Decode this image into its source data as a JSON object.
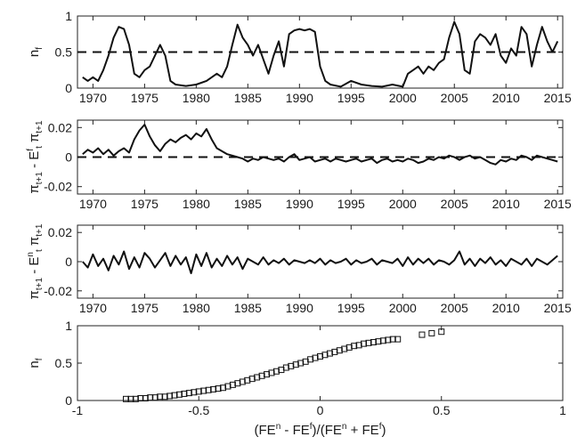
{
  "chart_data": [
    {
      "type": "line",
      "ylabel": "n",
      "ylabel_sub": "f",
      "xlim": [
        1968.5,
        2015.5
      ],
      "ylim": [
        0,
        1
      ],
      "xticks": [
        "1970",
        "1975",
        "1980",
        "1985",
        "1990",
        "1995",
        "2000",
        "2005",
        "2010",
        "2015"
      ],
      "yticks": [
        "0",
        "0.5",
        "1"
      ],
      "reference_line": 0.5,
      "grid": false,
      "series": [
        {
          "x": [
            1969,
            1969.5,
            1970,
            1970.5,
            1971,
            1971.5,
            1972,
            1972.5,
            1973,
            1973.5,
            1974,
            1974.5,
            1975,
            1975.5,
            1976,
            1976.5,
            1977,
            1977.5,
            1978,
            1979,
            1980,
            1981,
            1982,
            1982.5,
            1983,
            1983.5,
            1984,
            1984.5,
            1985,
            1985.5,
            1986,
            1986.5,
            1987,
            1987.5,
            1988,
            1988.5,
            1989,
            1989.5,
            1990,
            1990.5,
            1991,
            1991.5,
            1992,
            1992.5,
            1993,
            1994,
            1995,
            1996,
            1997,
            1998,
            1999,
            2000,
            2000.5,
            2001,
            2001.5,
            2002,
            2002.5,
            2003,
            2003.5,
            2004,
            2004.5,
            2005,
            2005.5,
            2006,
            2006.5,
            2007,
            2007.5,
            2008,
            2008.5,
            2009,
            2009.5,
            2010,
            2010.5,
            2011,
            2011.5,
            2012,
            2012.5,
            2013,
            2013.5,
            2014,
            2014.5,
            2015
          ],
          "y": [
            0.15,
            0.1,
            0.15,
            0.1,
            0.25,
            0.45,
            0.7,
            0.85,
            0.82,
            0.6,
            0.2,
            0.15,
            0.25,
            0.3,
            0.45,
            0.6,
            0.45,
            0.1,
            0.05,
            0.03,
            0.05,
            0.1,
            0.2,
            0.15,
            0.3,
            0.6,
            0.88,
            0.7,
            0.6,
            0.45,
            0.6,
            0.4,
            0.2,
            0.45,
            0.65,
            0.3,
            0.75,
            0.8,
            0.82,
            0.8,
            0.82,
            0.78,
            0.3,
            0.1,
            0.05,
            0.02,
            0.1,
            0.05,
            0.03,
            0.02,
            0.05,
            0.02,
            0.2,
            0.25,
            0.3,
            0.2,
            0.3,
            0.25,
            0.35,
            0.4,
            0.7,
            0.92,
            0.75,
            0.25,
            0.2,
            0.65,
            0.75,
            0.7,
            0.6,
            0.75,
            0.45,
            0.35,
            0.55,
            0.45,
            0.85,
            0.75,
            0.3,
            0.6,
            0.85,
            0.65,
            0.5,
            0.65
          ]
        }
      ]
    },
    {
      "type": "line",
      "ylabel": "π",
      "ylabel_sub": "t+1",
      "ylabel_mid": " - E",
      "ylabel_mid_sub": "t",
      "ylabel_mid_sup": "f",
      "ylabel_end": " π",
      "ylabel_end_sub": "t+1",
      "xlim": [
        1968.5,
        2015.5
      ],
      "ylim": [
        -0.025,
        0.025
      ],
      "xticks": [
        "1970",
        "1975",
        "1980",
        "1985",
        "1990",
        "1995",
        "2000",
        "2005",
        "2010",
        "2015"
      ],
      "yticks": [
        "-0.02",
        "0",
        "0.02"
      ],
      "reference_line": 0,
      "grid": false,
      "series": [
        {
          "x": [
            1969,
            1969.5,
            1970,
            1970.5,
            1971,
            1971.5,
            1972,
            1972.5,
            1973,
            1973.5,
            1974,
            1974.5,
            1975,
            1975.5,
            1976,
            1976.5,
            1977,
            1977.5,
            1978,
            1978.5,
            1979,
            1979.5,
            1980,
            1980.5,
            1981,
            1981.5,
            1982,
            1982.5,
            1983,
            1983.5,
            1984,
            1984.5,
            1985,
            1985.5,
            1986,
            1986.5,
            1987,
            1987.5,
            1988,
            1988.5,
            1989,
            1989.5,
            1990,
            1990.5,
            1991,
            1991.5,
            1992,
            1992.5,
            1993,
            1993.5,
            1994,
            1994.5,
            1995,
            1995.5,
            1996,
            1996.5,
            1997,
            1997.5,
            1998,
            1998.5,
            1999,
            1999.5,
            2000,
            2000.5,
            2001,
            2001.5,
            2002,
            2002.5,
            2003,
            2003.5,
            2004,
            2004.5,
            2005,
            2005.5,
            2006,
            2006.5,
            2007,
            2007.5,
            2008,
            2008.5,
            2009,
            2009.5,
            2010,
            2010.5,
            2011,
            2011.5,
            2012,
            2012.5,
            2013,
            2013.5,
            2014,
            2014.5,
            2015
          ],
          "y": [
            0.002,
            0.005,
            0.003,
            0.006,
            0.002,
            0.005,
            0.001,
            0.004,
            0.006,
            0.003,
            0.012,
            0.018,
            0.022,
            0.014,
            0.008,
            0.004,
            0.009,
            0.012,
            0.01,
            0.013,
            0.015,
            0.012,
            0.016,
            0.014,
            0.019,
            0.012,
            0.006,
            0.004,
            0.002,
            0.001,
            0.0,
            -0.001,
            -0.003,
            -0.001,
            -0.002,
            0.0,
            -0.001,
            -0.002,
            -0.001,
            -0.003,
            0.0,
            0.002,
            -0.002,
            -0.001,
            0.0,
            -0.003,
            -0.002,
            -0.001,
            -0.003,
            -0.001,
            -0.002,
            -0.003,
            -0.002,
            -0.001,
            -0.003,
            -0.002,
            -0.001,
            -0.004,
            -0.002,
            -0.001,
            -0.003,
            -0.002,
            -0.003,
            -0.001,
            -0.002,
            -0.004,
            -0.003,
            -0.001,
            -0.002,
            0.0,
            -0.001,
            0.001,
            0.0,
            -0.002,
            0.0,
            0.001,
            -0.001,
            0.0,
            -0.002,
            -0.004,
            -0.005,
            -0.002,
            -0.003,
            -0.001,
            -0.002,
            0.001,
            0.0,
            -0.002,
            0.001,
            0.0,
            -0.001,
            -0.002,
            -0.003
          ]
        }
      ]
    },
    {
      "type": "line",
      "ylabel": "π",
      "ylabel_sub": "t+1",
      "ylabel_mid": " - E",
      "ylabel_mid_sub": "t",
      "ylabel_mid_sup": "n",
      "ylabel_end": " π",
      "ylabel_end_sub": "t+1",
      "xlim": [
        1968.5,
        2015.5
      ],
      "ylim": [
        -0.025,
        0.025
      ],
      "xticks": [
        "1970",
        "1975",
        "1980",
        "1985",
        "1990",
        "1995",
        "2000",
        "2005",
        "2010",
        "2015"
      ],
      "yticks": [
        "-0.02",
        "0",
        "0.02"
      ],
      "grid": false,
      "series": [
        {
          "x": [
            1969,
            1969.5,
            1970,
            1970.5,
            1971,
            1971.5,
            1972,
            1972.5,
            1973,
            1973.5,
            1974,
            1974.5,
            1975,
            1975.5,
            1976,
            1976.5,
            1977,
            1977.5,
            1978,
            1978.5,
            1979,
            1979.5,
            1980,
            1980.5,
            1981,
            1981.5,
            1982,
            1982.5,
            1983,
            1983.5,
            1984,
            1984.5,
            1985,
            1985.5,
            1986,
            1986.5,
            1987,
            1987.5,
            1988,
            1988.5,
            1989,
            1989.5,
            1990,
            1990.5,
            1991,
            1991.5,
            1992,
            1992.5,
            1993,
            1993.5,
            1994,
            1994.5,
            1995,
            1995.5,
            1996,
            1996.5,
            1997,
            1997.5,
            1998,
            1998.5,
            1999,
            1999.5,
            2000,
            2000.5,
            2001,
            2001.5,
            2002,
            2002.5,
            2003,
            2003.5,
            2004,
            2004.5,
            2005,
            2005.5,
            2006,
            2006.5,
            2007,
            2007.5,
            2008,
            2008.5,
            2009,
            2009.5,
            2010,
            2010.5,
            2011,
            2011.5,
            2012,
            2012.5,
            2013,
            2013.5,
            2014,
            2014.5,
            2015
          ],
          "y": [
            0.0,
            -0.004,
            0.005,
            -0.003,
            0.002,
            -0.006,
            0.004,
            -0.002,
            0.007,
            -0.005,
            0.003,
            -0.004,
            0.006,
            0.002,
            -0.004,
            0.001,
            0.006,
            -0.003,
            0.004,
            -0.002,
            0.003,
            -0.008,
            0.005,
            -0.003,
            0.006,
            -0.004,
            0.002,
            -0.003,
            0.004,
            -0.002,
            0.003,
            -0.005,
            0.002,
            0.0,
            -0.002,
            0.003,
            -0.002,
            0.001,
            -0.001,
            0.002,
            -0.002,
            0.001,
            0.0,
            -0.001,
            0.001,
            -0.001,
            0.002,
            -0.002,
            0.001,
            -0.001,
            0.0,
            0.002,
            -0.002,
            0.001,
            -0.001,
            0.0,
            0.002,
            -0.002,
            0.001,
            0.0,
            -0.001,
            0.002,
            -0.003,
            0.003,
            -0.002,
            0.002,
            -0.001,
            0.002,
            -0.002,
            0.001,
            0.0,
            -0.002,
            0.001,
            0.007,
            -0.002,
            0.002,
            -0.003,
            0.002,
            -0.001,
            0.003,
            -0.002,
            0.001,
            -0.003,
            0.002,
            0.0,
            -0.002,
            0.002,
            -0.003,
            0.002,
            0.0,
            -0.002,
            0.001,
            0.004
          ]
        }
      ]
    },
    {
      "type": "scatter",
      "ylabel": "n",
      "ylabel_sub": "f",
      "xlabel_parts": [
        "(FE",
        "n",
        " - FE",
        "f",
        ")/(FE",
        "n",
        " + FE",
        "f",
        ")"
      ],
      "xlim": [
        -1,
        1
      ],
      "ylim": [
        0,
        1
      ],
      "xticks": [
        "-1",
        "-0.5",
        "0",
        "0.5",
        "1"
      ],
      "yticks": [
        "0",
        "0.5",
        "1"
      ],
      "grid": false,
      "series": [
        {
          "x": [
            -0.8,
            -0.78,
            -0.76,
            -0.74,
            -0.72,
            -0.7,
            -0.68,
            -0.66,
            -0.64,
            -0.62,
            -0.6,
            -0.58,
            -0.56,
            -0.54,
            -0.52,
            -0.5,
            -0.48,
            -0.46,
            -0.44,
            -0.42,
            -0.4,
            -0.38,
            -0.36,
            -0.34,
            -0.32,
            -0.3,
            -0.28,
            -0.26,
            -0.24,
            -0.22,
            -0.2,
            -0.18,
            -0.16,
            -0.14,
            -0.12,
            -0.1,
            -0.08,
            -0.06,
            -0.04,
            -0.02,
            0.0,
            0.02,
            0.04,
            0.06,
            0.08,
            0.1,
            0.12,
            0.14,
            0.16,
            0.18,
            0.2,
            0.22,
            0.24,
            0.26,
            0.28,
            0.3,
            0.32,
            0.42,
            0.46,
            0.5
          ],
          "y": [
            0.02,
            0.02,
            0.02,
            0.03,
            0.03,
            0.04,
            0.04,
            0.05,
            0.05,
            0.06,
            0.07,
            0.08,
            0.09,
            0.1,
            0.11,
            0.12,
            0.13,
            0.14,
            0.15,
            0.16,
            0.17,
            0.19,
            0.21,
            0.23,
            0.25,
            0.27,
            0.29,
            0.31,
            0.33,
            0.35,
            0.37,
            0.39,
            0.41,
            0.44,
            0.46,
            0.48,
            0.5,
            0.52,
            0.55,
            0.57,
            0.59,
            0.61,
            0.63,
            0.65,
            0.67,
            0.69,
            0.71,
            0.73,
            0.74,
            0.76,
            0.77,
            0.78,
            0.79,
            0.8,
            0.81,
            0.82,
            0.82,
            0.88,
            0.9,
            0.92
          ]
        }
      ]
    }
  ]
}
